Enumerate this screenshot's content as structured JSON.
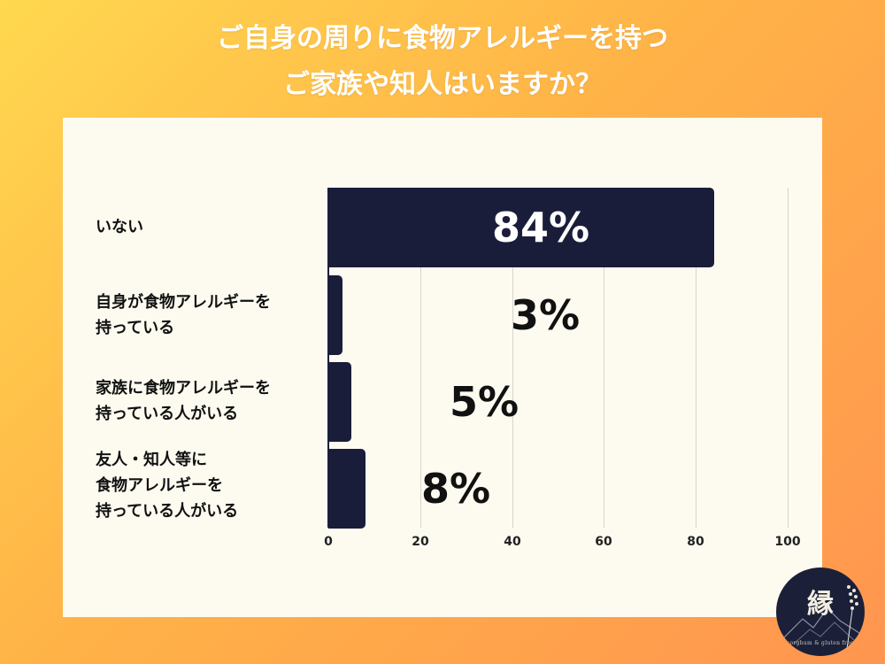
{
  "title": {
    "line1": "ご自身の周りに食物アレルギーを持つ",
    "line2": "ご家族や知人はいますか？"
  },
  "chart_data": {
    "type": "bar",
    "orientation": "horizontal",
    "categories": [
      {
        "lines": [
          "いない"
        ]
      },
      {
        "lines": [
          "自身が食物アレルギーを",
          "持っている"
        ]
      },
      {
        "lines": [
          "家族に食物アレルギーを",
          "持っている人がいる"
        ]
      },
      {
        "lines": [
          "友人・知人等に",
          "食物アレルギーを",
          "持っている人がいる"
        ]
      }
    ],
    "values": [
      84,
      3,
      5,
      8
    ],
    "value_labels": [
      "84%",
      "3%",
      "5%",
      "8%"
    ],
    "xlim": [
      0,
      100
    ],
    "ticks": [
      "0",
      "20",
      "40",
      "60",
      "80",
      "100"
    ],
    "grid": true,
    "bar_color": "#1a1d3a"
  },
  "colors": {
    "background_start": "#ffd84f",
    "background_end": "#ff9550",
    "panel": "#fdfbf0",
    "bar": "#1a1d3a",
    "label_on_bar": "#ffffff",
    "label_outside": "#111111"
  },
  "logo": {
    "mark": "縁",
    "caption": "sorghum & gluten free"
  }
}
